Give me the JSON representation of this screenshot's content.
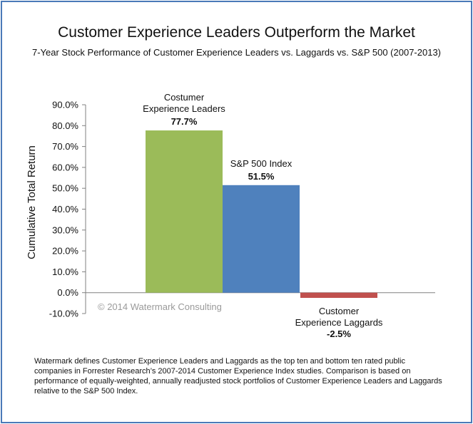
{
  "header": {
    "title": "Customer Experience Leaders Outperform the Market",
    "subtitle": "7-Year Stock Performance of Customer Experience Leaders vs. Laggards vs. S&P 500 (2007-2013)"
  },
  "chart_data": {
    "type": "bar",
    "title": "Customer Experience Leaders Outperform the Market",
    "subtitle": "7-Year Stock Performance of Customer Experience Leaders vs. Laggards vs. S&P 500 (2007-2013)",
    "ylabel": "Cumulative Total Return",
    "ylim": [
      -10,
      90
    ],
    "y_ticks": [
      "90.0%",
      "80.0%",
      "70.0%",
      "60.0%",
      "50.0%",
      "40.0%",
      "30.0%",
      "20.0%",
      "10.0%",
      "0.0%",
      "-10.0%"
    ],
    "grid": false,
    "categories": [
      {
        "label_lines": [
          "Costumer",
          "Experience Leaders"
        ],
        "value": 77.7,
        "value_label": "77.7%",
        "color": "#9bbb59"
      },
      {
        "label_lines": [
          "S&P 500 Index"
        ],
        "value": 51.5,
        "value_label": "51.5%",
        "color": "#4f81bd"
      },
      {
        "label_lines": [
          "Customer",
          "Experience Laggards"
        ],
        "value": -2.5,
        "value_label": "-2.5%",
        "color": "#c0504d"
      }
    ],
    "watermark": "© 2014 Watermark Consulting"
  },
  "footnote": "Watermark defines Customer Experience Leaders and Laggards as the top ten and bottom ten rated public companies in Forrester Research’s 2007-2014 Customer Experience Index studies. Comparison is based on performance of equally-weighted, annually readjusted stock portfolios of Customer Experience Leaders and Laggards relative to the S&P 500 Index."
}
